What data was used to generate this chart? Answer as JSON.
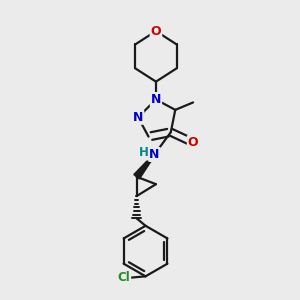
{
  "bg_color": "#ebebeb",
  "atom_colors": {
    "N": "#0000cc",
    "O": "#cc0000",
    "Cl": "#228b22",
    "H": "#008888"
  },
  "bond_color": "#1a1a1a",
  "bond_width": 1.6
}
